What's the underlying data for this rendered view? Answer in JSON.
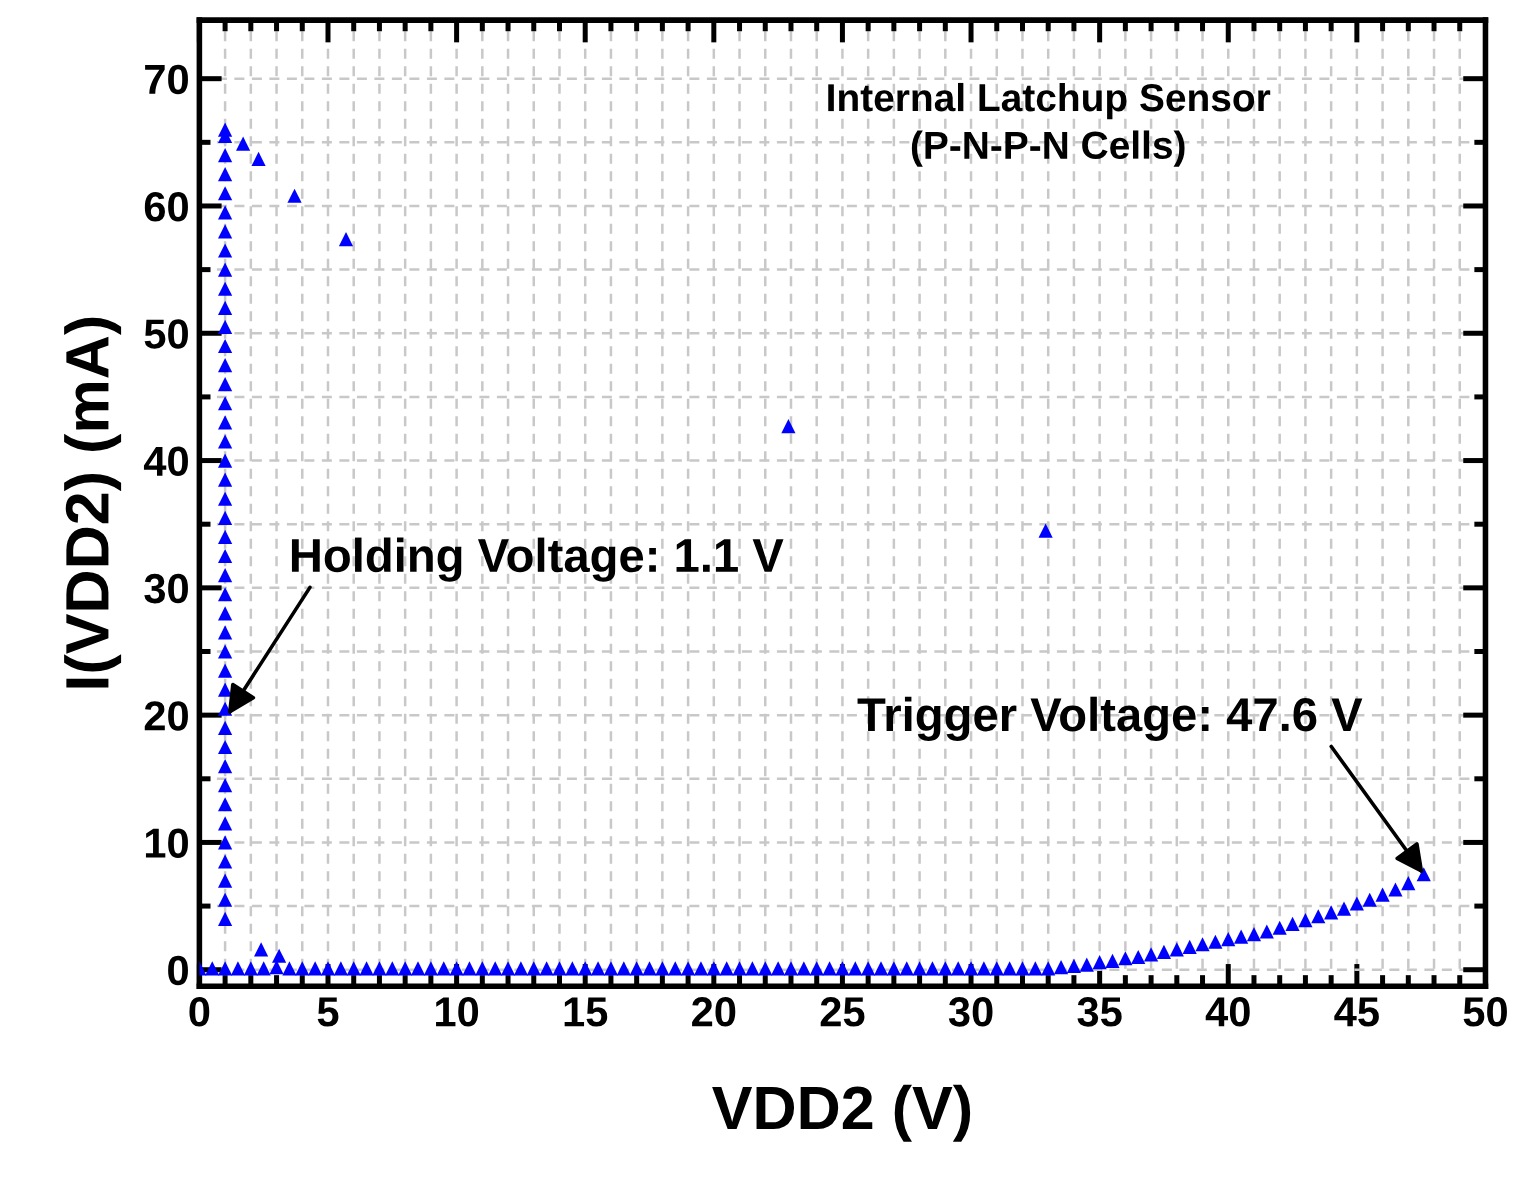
{
  "chart_data": {
    "type": "scatter",
    "xlabel": "VDD2 (V)",
    "ylabel": "I(VDD2) (mA)",
    "xlim": [
      0,
      50
    ],
    "ylim": [
      -1.3,
      74.6
    ],
    "xticks": [
      0,
      {
        "value": 1,
        "label": null
      },
      {
        "value": 2,
        "label": null
      },
      {
        "value": 3,
        "label": null
      },
      {
        "value": 4,
        "label": null
      },
      5,
      {
        "value": 6,
        "label": null
      },
      {
        "value": 7,
        "label": null
      },
      {
        "value": 8,
        "label": null
      },
      {
        "value": 9,
        "label": null
      },
      10,
      {
        "value": 11,
        "label": null
      },
      {
        "value": 12,
        "label": null
      },
      {
        "value": 13,
        "label": null
      },
      {
        "value": 14,
        "label": null
      },
      15,
      {
        "value": 16,
        "label": null
      },
      {
        "value": 17,
        "label": null
      },
      {
        "value": 18,
        "label": null
      },
      {
        "value": 19,
        "label": null
      },
      20,
      {
        "value": 21,
        "label": null
      },
      {
        "value": 22,
        "label": null
      },
      {
        "value": 23,
        "label": null
      },
      {
        "value": 24,
        "label": null
      },
      25,
      {
        "value": 26,
        "label": null
      },
      {
        "value": 27,
        "label": null
      },
      {
        "value": 28,
        "label": null
      },
      {
        "value": 29,
        "label": null
      },
      30,
      {
        "value": 31,
        "label": null
      },
      {
        "value": 32,
        "label": null
      },
      {
        "value": 33,
        "label": null
      },
      {
        "value": 34,
        "label": null
      },
      35,
      {
        "value": 36,
        "label": null
      },
      {
        "value": 37,
        "label": null
      },
      {
        "value": 38,
        "label": null
      },
      {
        "value": 39,
        "label": null
      },
      40,
      {
        "value": 41,
        "label": null
      },
      {
        "value": 42,
        "label": null
      },
      {
        "value": 43,
        "label": null
      },
      {
        "value": 44,
        "label": null
      },
      45,
      {
        "value": 46,
        "label": null
      },
      {
        "value": 47,
        "label": null
      },
      {
        "value": 48,
        "label": null
      },
      {
        "value": 49,
        "label": null
      },
      50
    ],
    "yticks": [
      0,
      {
        "value": 5,
        "label": null
      },
      10,
      {
        "value": 15,
        "label": null
      },
      20,
      {
        "value": 25,
        "label": null
      },
      30,
      {
        "value": 35,
        "label": null
      },
      40,
      {
        "value": 45,
        "label": null
      },
      50,
      {
        "value": 55,
        "label": null
      },
      60,
      {
        "value": 65,
        "label": null
      },
      70
    ],
    "grid": true,
    "marker": "triangle",
    "legend": false,
    "annotations": [
      "Internal Latchup Sensor\n(P-N-P-N Cells)",
      {
        "text": "Holding Voltage: 1.1 V",
        "x": 1.1,
        "y": 20
      },
      {
        "text": "Trigger Voltage: 47.6 V",
        "x": 47.6,
        "y": 7.5
      }
    ],
    "series": [
      {
        "color": "#0000ff",
        "x": [
          0,
          0.5,
          1,
          1.5,
          2,
          2.5,
          3,
          3.5,
          4,
          4.5,
          5,
          5.5,
          6,
          6.5,
          7,
          7.5,
          8,
          8.5,
          9,
          9.5,
          10,
          10.5,
          11,
          11.5,
          12,
          12.5,
          13,
          13.5,
          14,
          14.5,
          15,
          15.5,
          16,
          16.5,
          17,
          17.5,
          18,
          18.5,
          19,
          19.5,
          20,
          20.5,
          21,
          21.5,
          22,
          22.5,
          23,
          23.5,
          24,
          24.5,
          25,
          25.5,
          26,
          26.5,
          27,
          27.5,
          28,
          28.5,
          29,
          29.5,
          30,
          30.5,
          31,
          31.5,
          32,
          32.5,
          33,
          33.5,
          34,
          34.5,
          35,
          35.5,
          36,
          36.5,
          37,
          37.5,
          38,
          38.5,
          39,
          39.5,
          40,
          40.5,
          41,
          41.5,
          42,
          42.5,
          43,
          43.5,
          44,
          44.5,
          45,
          45.5,
          46,
          46.5,
          47,
          47.6
        ],
        "values": [
          0.1,
          0.1,
          0.1,
          0.1,
          0.1,
          0.1,
          0.2,
          0.1,
          0.1,
          0.1,
          0.1,
          0.1,
          0.1,
          0.1,
          0.1,
          0.1,
          0.1,
          0.1,
          0.1,
          0.1,
          0.1,
          0.1,
          0.1,
          0.1,
          0.1,
          0.1,
          0.1,
          0.1,
          0.1,
          0.1,
          0.1,
          0.1,
          0.1,
          0.1,
          0.1,
          0.1,
          0.1,
          0.1,
          0.1,
          0.1,
          0.1,
          0.1,
          0.1,
          0.1,
          0.1,
          0.1,
          0.1,
          0.1,
          0.1,
          0.1,
          0.1,
          0.1,
          0.1,
          0.1,
          0.1,
          0.1,
          0.1,
          0.1,
          0.1,
          0.1,
          0.1,
          0.1,
          0.1,
          0.1,
          0.1,
          0.1,
          0.1,
          0.2,
          0.3,
          0.4,
          0.6,
          0.7,
          0.9,
          1.0,
          1.2,
          1.4,
          1.6,
          1.8,
          2.0,
          2.2,
          2.4,
          2.6,
          2.8,
          3.0,
          3.3,
          3.6,
          3.9,
          4.2,
          4.5,
          4.8,
          5.2,
          5.5,
          5.9,
          6.3,
          6.8,
          7.5
        ]
      },
      {
        "color": "#0000ff",
        "x": [
          1,
          1,
          1,
          1,
          1,
          1,
          1,
          1,
          1,
          1,
          1,
          1,
          1,
          1,
          1,
          1,
          1,
          1,
          1,
          1,
          1,
          1,
          1,
          1,
          1,
          1,
          1,
          1,
          1,
          1,
          1,
          1,
          1,
          1,
          1,
          1,
          1,
          1,
          1,
          1,
          1,
          1,
          1
        ],
        "values": [
          4,
          5.5,
          7,
          8.5,
          10,
          11.5,
          13,
          14.5,
          16,
          17.5,
          19,
          20.5,
          22,
          23.5,
          25,
          26.5,
          28,
          29.5,
          31,
          32.5,
          34,
          35.5,
          37,
          38.5,
          40,
          41.5,
          43,
          44.5,
          46,
          47.5,
          49,
          50.5,
          52,
          53.5,
          55,
          56.5,
          58,
          59.5,
          61,
          62.5,
          64,
          65.5,
          66
        ]
      },
      {
        "color": "#0000ff",
        "x": [
          1.7,
          2.3,
          3.7,
          5.7,
          22.9,
          32.9,
          2.4,
          3.1
        ],
        "values": [
          64.9,
          63.7,
          60.8,
          57.4,
          42.7,
          34.5,
          1.6,
          1.1
        ]
      }
    ]
  }
}
